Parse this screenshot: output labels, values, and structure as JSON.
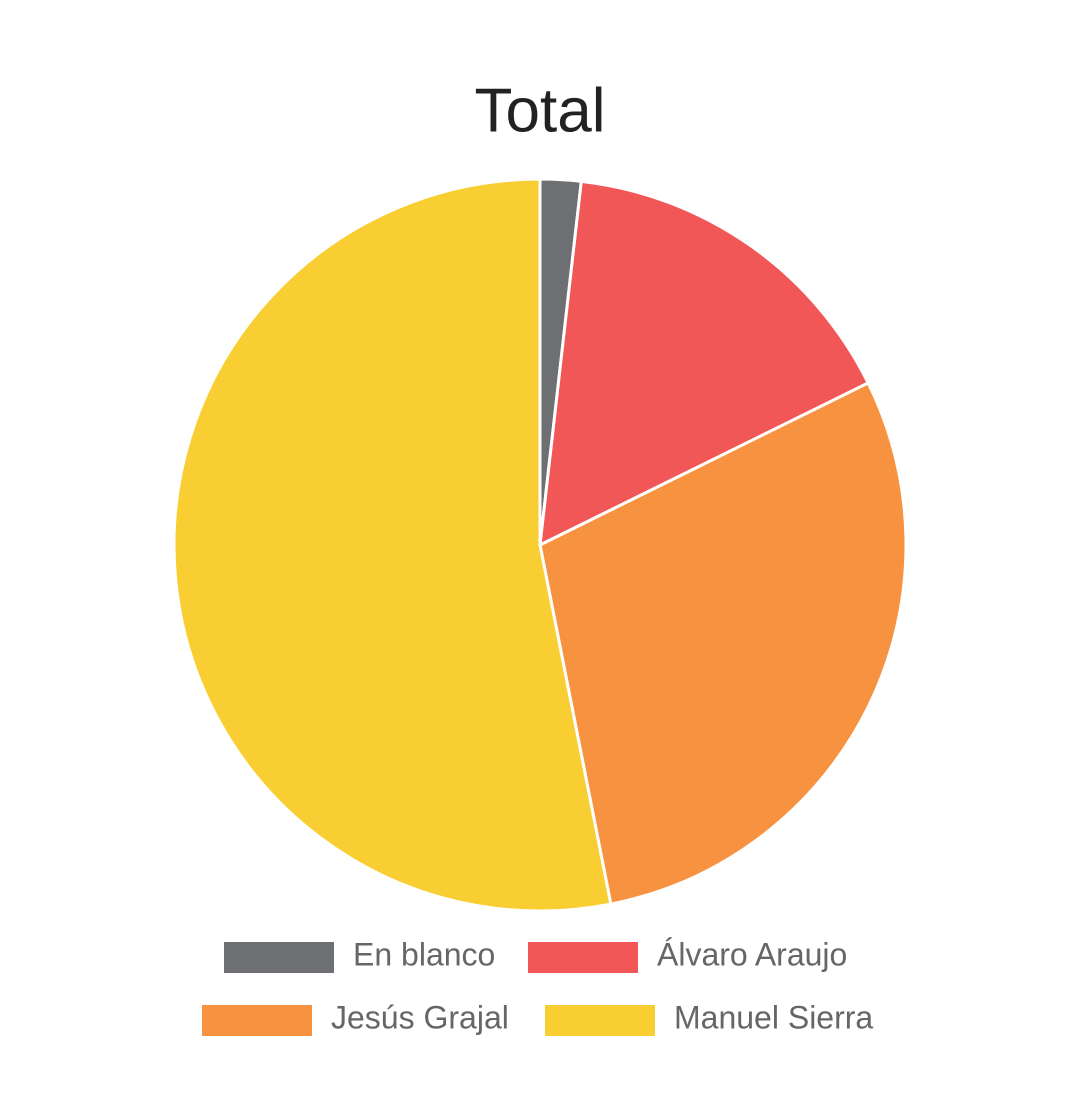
{
  "chart_data": {
    "type": "pie",
    "title": "Total",
    "categories": [
      "En blanco",
      "Álvaro Araujo",
      "Jesús Grajal",
      "Manuel Sierra"
    ],
    "values": [
      1.8,
      15.9,
      29.2,
      53.1
    ],
    "colors": [
      "#6e6f73",
      "#f25757",
      "#f79241",
      "#f8ce32"
    ]
  }
}
